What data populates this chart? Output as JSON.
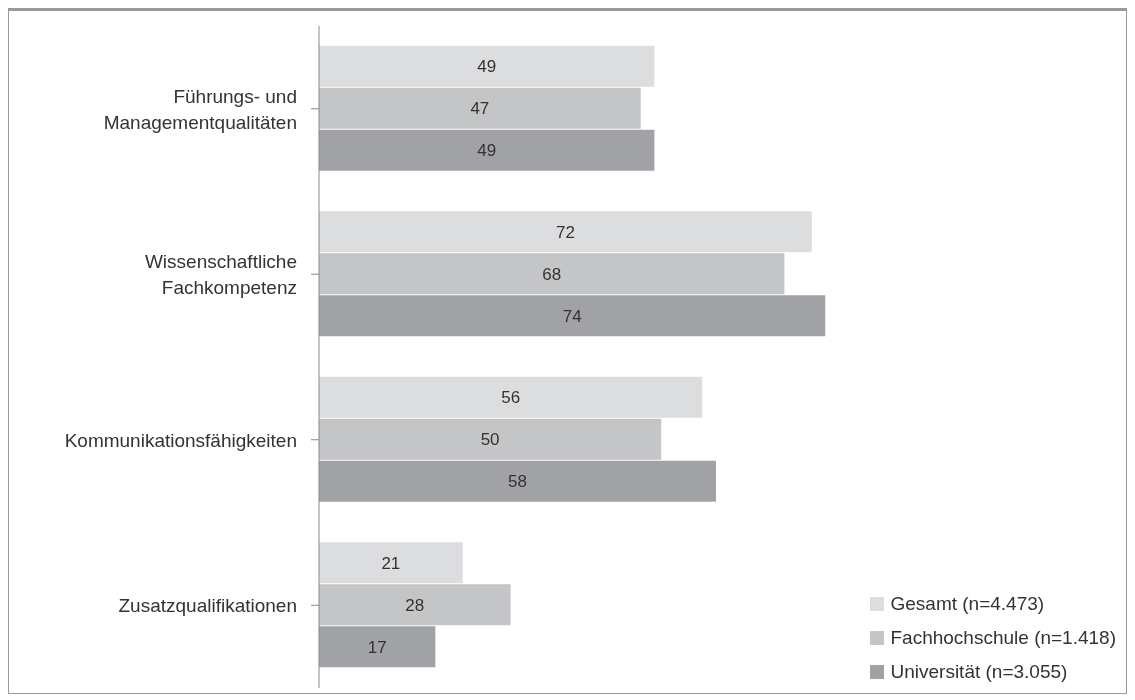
{
  "chart_data": {
    "type": "bar",
    "orientation": "horizontal",
    "categories": [
      "Führungs- und Managementqualitäten",
      "Wissenschaftliche Fachkompetenz",
      "Kommunikationsfähigkeiten",
      "Zusatzqualifikationen"
    ],
    "series": [
      {
        "name": "Gesamt (n=4.473)",
        "color": "#dcdddf",
        "values": [
          49,
          72,
          56,
          21
        ]
      },
      {
        "name": "Fachhochschule (n=1.418)",
        "color": "#c4c5c7",
        "values": [
          47,
          68,
          50,
          28
        ]
      },
      {
        "name": "Universität (n=3.055)",
        "color": "#a1a2a5",
        "values": [
          49,
          74,
          58,
          17
        ]
      }
    ],
    "data_labels": true,
    "legend": "bottom right"
  }
}
